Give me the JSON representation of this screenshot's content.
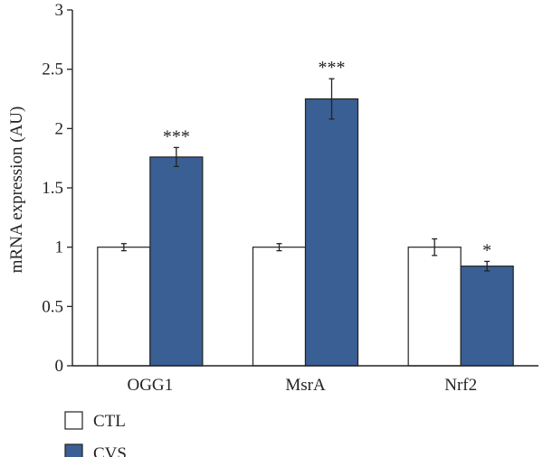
{
  "chart_data": {
    "type": "bar",
    "ylabel": "mRNA expression (AU)",
    "ylim": [
      0,
      3
    ],
    "yticks": [
      "0",
      "0.5",
      "1",
      "1.5",
      "2",
      "2.5",
      "3"
    ],
    "categories": [
      "OGG1",
      "MsrA",
      "Nrf2"
    ],
    "series": [
      {
        "name": "CTL",
        "color": "#ffffff",
        "values": [
          1.0,
          1.0,
          1.0
        ],
        "errors": [
          0.03,
          0.03,
          0.07
        ]
      },
      {
        "name": "CVS",
        "color": "#3a5f94",
        "values": [
          1.76,
          2.25,
          0.84
        ],
        "errors": [
          0.08,
          0.17,
          0.04
        ]
      }
    ],
    "significance": [
      "***",
      "***",
      "*"
    ],
    "legend_position": "bottom-left",
    "grid": false
  }
}
